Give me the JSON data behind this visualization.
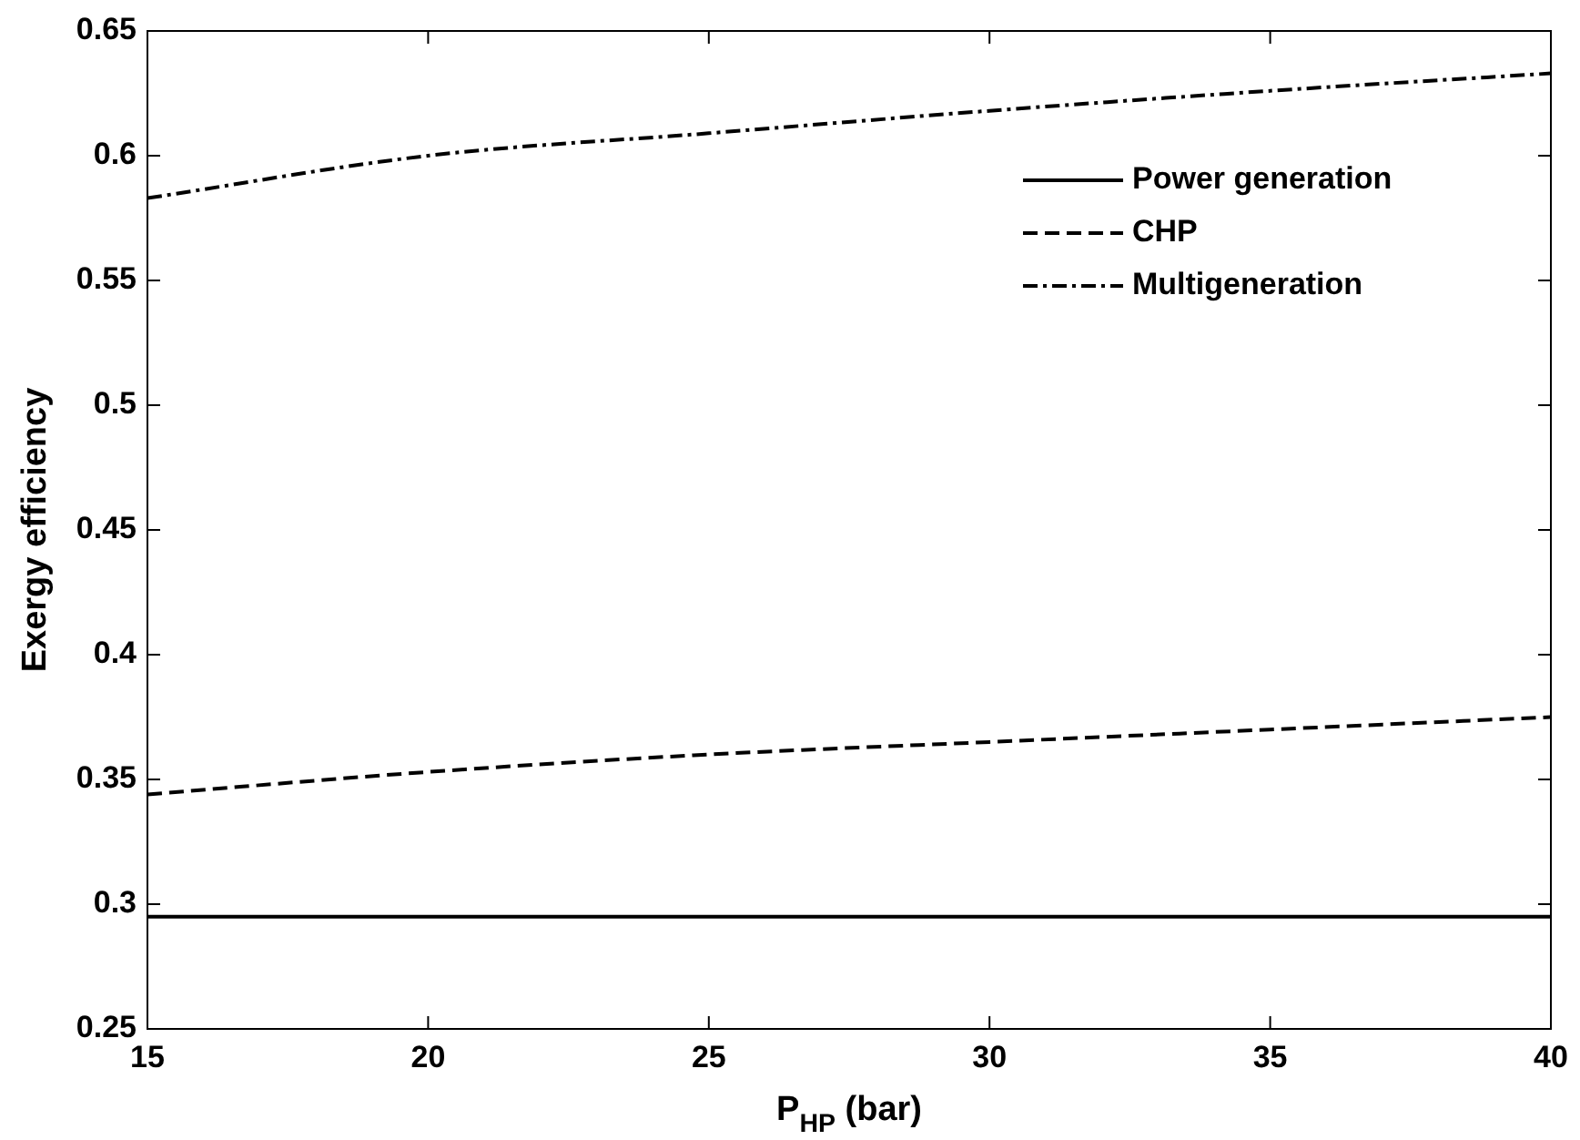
{
  "chart_data": {
    "type": "line",
    "xlabel": "P$_{HP}$ (bar)",
    "ylabel": "Exergy efficiency",
    "x": [
      15,
      20,
      25,
      30,
      35,
      40
    ],
    "series": [
      {
        "name": "Power generation",
        "color": "#000000",
        "line_style": "solid",
        "values": [
          0.295,
          0.295,
          0.295,
          0.295,
          0.295,
          0.295
        ]
      },
      {
        "name": "CHP",
        "color": "#000000",
        "line_style": "dashed",
        "values": [
          0.344,
          0.353,
          0.36,
          0.365,
          0.37,
          0.375
        ]
      },
      {
        "name": "Multigeneration",
        "color": "#000000",
        "line_style": "dashdot",
        "values": [
          0.583,
          0.6,
          0.609,
          0.618,
          0.626,
          0.633
        ]
      }
    ],
    "xlim": [
      15,
      40
    ],
    "xticks": [
      15,
      20,
      25,
      30,
      35,
      40
    ],
    "ylim": [
      0.25,
      0.65
    ],
    "yticks": [
      0.25,
      0.3,
      0.35,
      0.4,
      0.45,
      0.5,
      0.55,
      0.6,
      0.65
    ],
    "grid": false,
    "legend": "top right",
    "marker": "none"
  }
}
